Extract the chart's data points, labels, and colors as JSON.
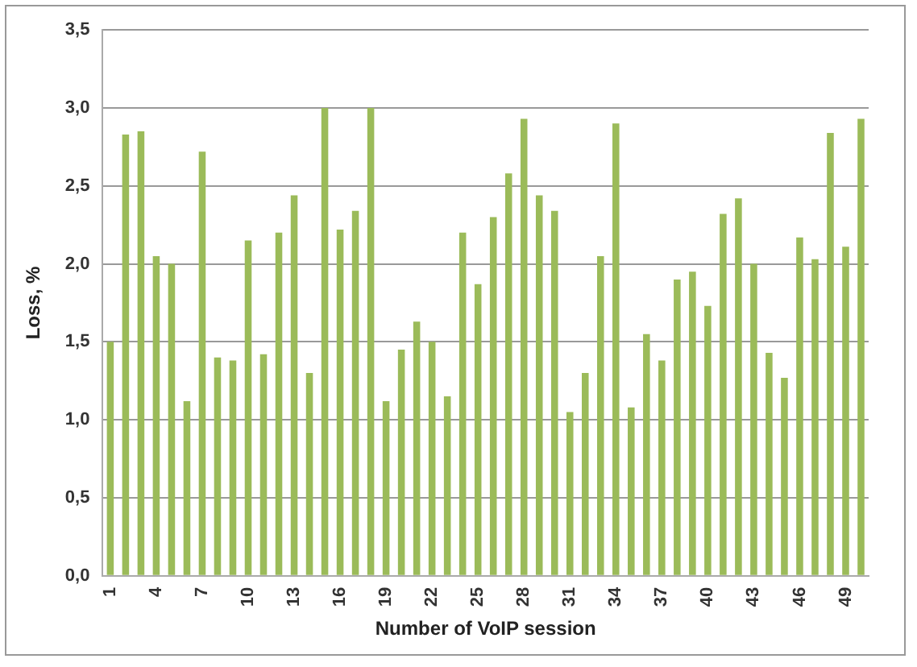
{
  "chart_data": {
    "type": "bar",
    "xlabel": "Number of VoIP session",
    "ylabel": "Loss, %",
    "categories": [
      "1",
      null,
      null,
      "4",
      null,
      null,
      "7",
      null,
      null,
      "10",
      null,
      null,
      "13",
      null,
      null,
      "16",
      null,
      null,
      "19",
      null,
      null,
      "22",
      null,
      null,
      "25",
      null,
      null,
      "28",
      null,
      null,
      "31",
      null,
      null,
      "34",
      null,
      null,
      "37",
      null,
      null,
      "40",
      null,
      null,
      "43",
      null,
      null,
      "46",
      null,
      null,
      "49",
      null
    ],
    "values": [
      1.5,
      2.83,
      2.85,
      2.05,
      2.0,
      1.12,
      2.72,
      1.4,
      1.38,
      2.15,
      1.42,
      2.2,
      2.44,
      1.3,
      3.0,
      2.22,
      2.34,
      3.0,
      1.12,
      1.45,
      1.63,
      1.5,
      1.15,
      2.2,
      1.87,
      2.3,
      2.58,
      2.93,
      2.44,
      2.34,
      1.05,
      1.3,
      2.05,
      2.9,
      1.08,
      1.55,
      1.38,
      1.9,
      1.95,
      1.73,
      2.32,
      2.42,
      2.0,
      1.43,
      1.27,
      2.17,
      2.03,
      2.84,
      2.11,
      2.93
    ],
    "color": "#9bbb59",
    "ylim": [
      0,
      3.5
    ],
    "yticks": [
      {
        "value": 0,
        "label": "0,0"
      },
      {
        "value": 0.5,
        "label": "0,5"
      },
      {
        "value": 1,
        "label": "1,0"
      },
      {
        "value": 1.5,
        "label": "1,5"
      },
      {
        "value": 2,
        "label": "2,0"
      },
      {
        "value": 2.5,
        "label": "2,5"
      },
      {
        "value": 3,
        "label": "3,0"
      },
      {
        "value": 3.5,
        "label": "3,5"
      }
    ],
    "grid": "y",
    "legend": false
  }
}
